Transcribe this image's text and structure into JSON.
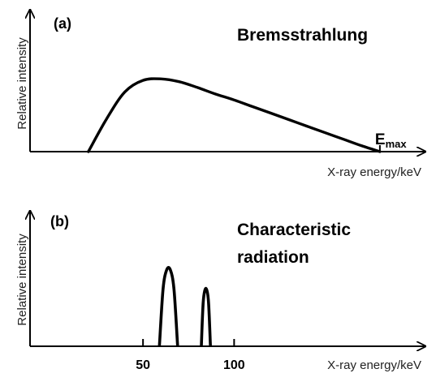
{
  "chart_data": [
    {
      "type": "line",
      "panel_label": "(a)",
      "title": "Bremsstrahlung",
      "xlabel": "X-ray energy/keV",
      "ylabel": "Relative intensity",
      "annotation": {
        "main": "E",
        "sub": "max"
      },
      "x": [
        20,
        30,
        40,
        50,
        60,
        70,
        80,
        90,
        100,
        110,
        120,
        130,
        140,
        150,
        160,
        170,
        180
      ],
      "y": [
        0,
        0.45,
        0.82,
        0.98,
        1.0,
        0.96,
        0.88,
        0.79,
        0.71,
        0.62,
        0.53,
        0.44,
        0.35,
        0.26,
        0.17,
        0.08,
        0
      ],
      "xlim": [
        -12,
        205
      ],
      "ylim": [
        0,
        1.95
      ],
      "grid": false
    },
    {
      "type": "line",
      "panel_label": "(b)",
      "title": [
        "Characteristic",
        "radiation"
      ],
      "xlabel": "X-ray energy/keV",
      "ylabel": "Relative intensity",
      "xticks": [
        50,
        100
      ],
      "xlim": [
        -12,
        205
      ],
      "ylim": [
        0,
        1.95
      ],
      "grid": false,
      "series": [
        {
          "x": [
            59,
            61,
            63,
            65,
            67,
            69
          ],
          "y": [
            0,
            0.82,
            1.1,
            1.1,
            0.82,
            0
          ]
        },
        {
          "x": [
            82,
            83,
            84,
            85,
            86,
            87
          ],
          "y": [
            0,
            0.62,
            0.81,
            0.81,
            0.62,
            0
          ]
        }
      ]
    }
  ]
}
